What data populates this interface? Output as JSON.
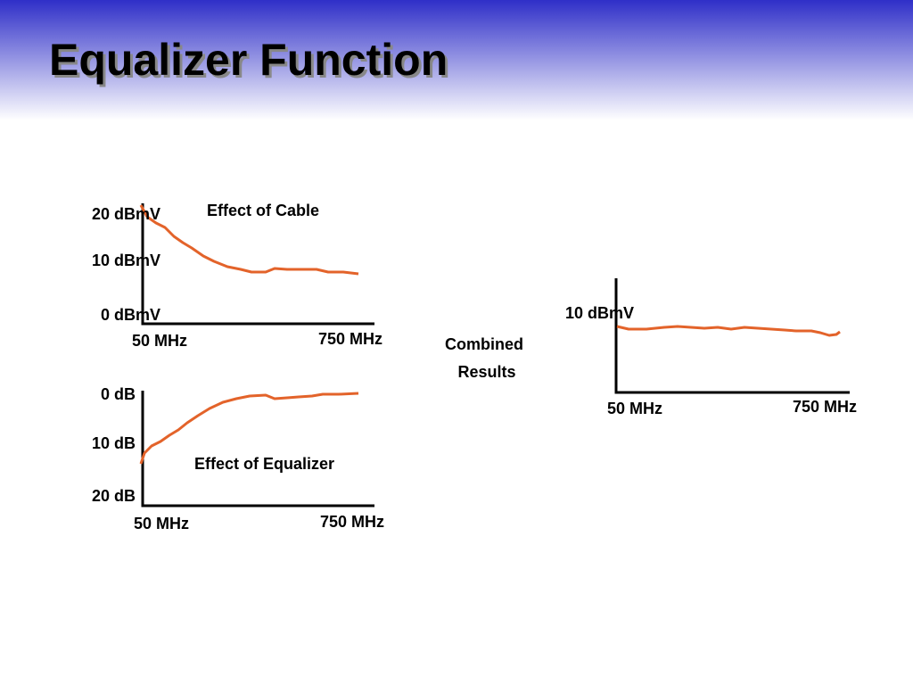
{
  "title": "Equalizer Function",
  "panels": [
    {
      "caption": "Effect of Cable",
      "y_labels": [
        "20 dBmV",
        "10 dBmV",
        "0 dBmV"
      ],
      "x_labels": [
        "50 MHz",
        "750 MHz"
      ]
    },
    {
      "caption": "Effect of Equalizer",
      "y_labels": [
        "0 dB",
        "10 dB",
        "20 dB"
      ],
      "x_labels": [
        "50 MHz",
        "750 MHz"
      ]
    },
    {
      "caption_lines": [
        "Combined",
        "Results"
      ],
      "y_labels": [
        "10 dBmV"
      ],
      "x_labels": [
        "50 MHz",
        "750 MHz"
      ]
    }
  ]
}
